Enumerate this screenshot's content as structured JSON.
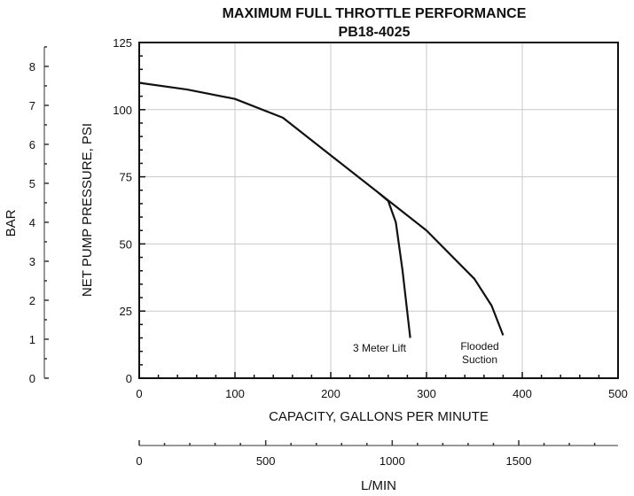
{
  "chart_data": {
    "type": "line",
    "title": "MAXIMUM FULL THROTTLE PERFORMANCE",
    "subtitle": "PB18-4025",
    "xlabel": "CAPACITY, GALLONS PER MINUTE",
    "ylabel": "NET PUMP PRESSURE, PSI",
    "xlim": [
      0,
      500
    ],
    "ylim": [
      0,
      125
    ],
    "xticks": [
      0,
      100,
      200,
      300,
      400,
      500
    ],
    "yticks": [
      0,
      25,
      50,
      75,
      100,
      125
    ],
    "grid": true,
    "secondary_x": {
      "label": "L/MIN",
      "ticks": [
        0,
        500,
        1000,
        1500
      ],
      "factor": 3.785
    },
    "secondary_y": {
      "label": "BAR",
      "ticks": [
        0,
        1,
        2,
        3,
        4,
        5,
        6,
        7,
        8
      ],
      "factor": 0.0689
    },
    "series": [
      {
        "name": "Flooded Suction",
        "label_lines": [
          "Flooded",
          "Suction"
        ],
        "x": [
          0,
          50,
          100,
          150,
          200,
          250,
          300,
          350,
          368,
          380
        ],
        "y": [
          110,
          107.5,
          104,
          97,
          83,
          69,
          55,
          37,
          27,
          16
        ]
      },
      {
        "name": "3 Meter Lift",
        "label_lines": [
          "3 Meter Lift"
        ],
        "x": [
          250,
          260,
          268,
          275,
          283
        ],
        "y": [
          69,
          66,
          58,
          40,
          15
        ]
      }
    ]
  }
}
